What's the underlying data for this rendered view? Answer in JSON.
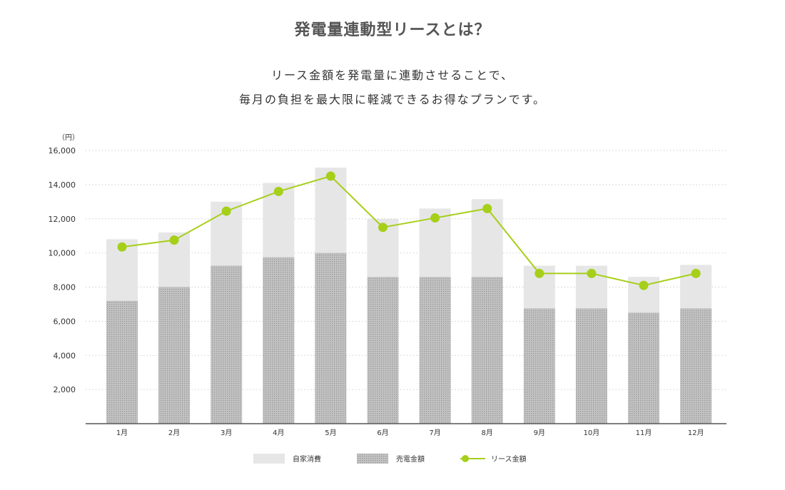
{
  "heading": {
    "title": "発電量連動型リースとは？",
    "subtitle_line1": "リース金額を発電量に連動させることで、",
    "subtitle_line2": "毎月の負担を最大限に軽減できるお得なプランです。"
  },
  "chart_data": {
    "type": "bar",
    "title": "",
    "ylabel": "（円）",
    "xlabel": "",
    "ylim": [
      0,
      16000
    ],
    "yticks": [
      2000,
      4000,
      6000,
      8000,
      10000,
      12000,
      14000,
      16000
    ],
    "ytick_labels": [
      "2,000",
      "4,000",
      "6,000",
      "8,000",
      "10,000",
      "12,000",
      "14,000",
      "16,000"
    ],
    "grid": true,
    "legend_position": "bottom-center",
    "categories": [
      "1月",
      "2月",
      "3月",
      "4月",
      "5月",
      "6月",
      "7月",
      "8月",
      "9月",
      "10月",
      "11月",
      "12月"
    ],
    "series": [
      {
        "name": "売電金額",
        "kind": "stacked-bar",
        "color": "#b5b5b5",
        "values": [
          7200,
          8000,
          9250,
          9750,
          10000,
          8600,
          8600,
          8600,
          6750,
          6750,
          6500,
          6750
        ]
      },
      {
        "name": "自家消費",
        "kind": "stacked-bar",
        "color": "#e6e6e6",
        "values": [
          3600,
          3200,
          3750,
          4350,
          5000,
          3400,
          4000,
          4550,
          2500,
          2500,
          2100,
          2550
        ]
      },
      {
        "name": "リース金額",
        "kind": "line",
        "color": "#a6cf1a",
        "values": [
          10350,
          10750,
          12450,
          13600,
          14500,
          11500,
          12050,
          12600,
          8800,
          8800,
          8100,
          8800
        ]
      }
    ]
  }
}
